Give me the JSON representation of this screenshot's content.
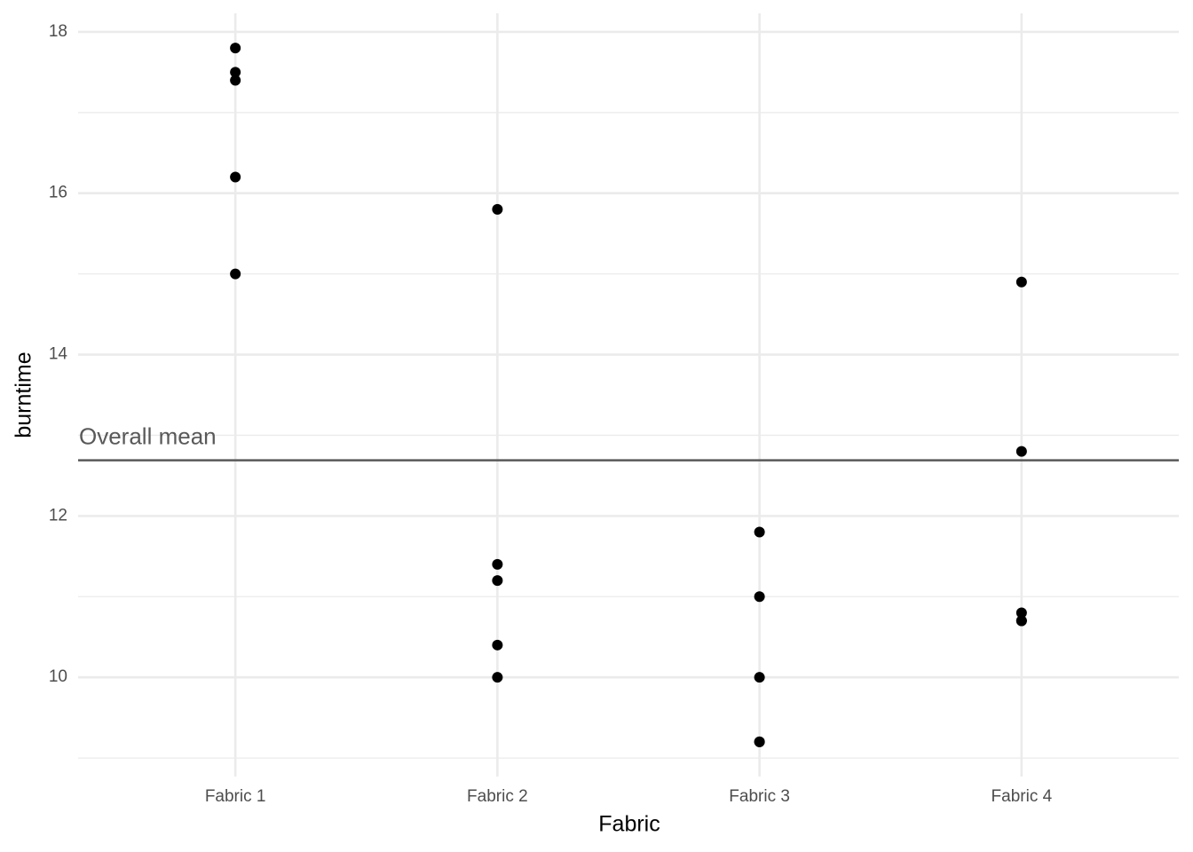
{
  "chart_data": {
    "type": "strip",
    "x_label": "Fabric",
    "y_label": "burntime",
    "categories": [
      "Fabric 1",
      "Fabric 2",
      "Fabric 3",
      "Fabric 4"
    ],
    "values": [
      [
        17.8,
        17.5,
        17.4,
        16.2,
        15.0
      ],
      [
        15.8,
        11.4,
        11.2,
        10.4,
        10.0
      ],
      [
        11.8,
        11.0,
        10.0,
        9.2,
        9.2
      ],
      [
        14.9,
        12.8,
        10.8,
        10.7,
        10.7
      ]
    ],
    "color": "#000000",
    "ylim": [
      8.77,
      18.23
    ],
    "yticks": [
      10,
      12,
      14,
      16,
      18
    ],
    "yminorticks": [
      9,
      11,
      13,
      15,
      17
    ],
    "grid": true,
    "reference_line": {
      "value": 12.69,
      "label": "Overall mean",
      "color": "#595959"
    }
  }
}
